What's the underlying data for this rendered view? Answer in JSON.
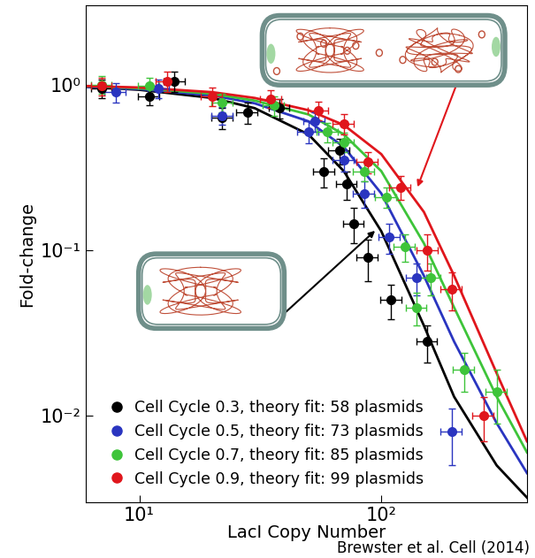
{
  "chart_data": {
    "type": "scatter",
    "x_label": "LacI Copy Number",
    "y_label": "Fold-change",
    "credit": "Brewster et al. Cell (2014)",
    "log": true,
    "legend": "lower left",
    "xlim": [
      6,
      400
    ],
    "ylim": [
      0.003,
      3
    ],
    "xticks": [
      {
        "value": 10,
        "label": "10¹"
      },
      {
        "value": 100,
        "label": "10²"
      }
    ],
    "yticks": [
      {
        "value": 0.01,
        "label": "10⁻²"
      },
      {
        "value": 0.1,
        "label": "10⁻¹"
      },
      {
        "value": 1,
        "label": "10⁰"
      }
    ],
    "series": [
      {
        "name": "Cell Cycle 0.3, theory fit: 58 plasmids",
        "type": "scatter",
        "marker": "o",
        "color": "#000000",
        "x": [
          7,
          11,
          14,
          22,
          28,
          38,
          58,
          67,
          72,
          77,
          88,
          110,
          155
        ],
        "values": [
          0.95,
          0.85,
          1.05,
          0.63,
          0.68,
          0.72,
          0.3,
          0.4,
          0.25,
          0.145,
          0.09,
          0.05,
          0.028
        ],
        "x_err": [
          0.7,
          1.1,
          1.4,
          2.2,
          2.8,
          3.8,
          5.8,
          6.7,
          7.2,
          7.7,
          8.8,
          11,
          15
        ],
        "y_err": [
          0.12,
          0.1,
          0.15,
          0.09,
          0.1,
          0.1,
          0.06,
          0.07,
          0.05,
          0.035,
          0.025,
          0.012,
          0.007
        ]
      },
      {
        "name": "Cell Cycle 0.5, theory fit: 73 plasmids",
        "type": "scatter",
        "marker": "o",
        "color": "#2a35c0",
        "x": [
          8,
          12,
          22,
          50,
          53,
          70,
          85,
          108,
          140,
          195
        ],
        "values": [
          0.9,
          0.95,
          0.65,
          0.52,
          0.6,
          0.35,
          0.22,
          0.12,
          0.068,
          0.008
        ],
        "x_err": [
          0.8,
          1.2,
          2.2,
          5,
          5.3,
          7,
          8.5,
          10.8,
          14,
          19.5
        ],
        "y_err": [
          0.12,
          0.12,
          0.08,
          0.08,
          0.08,
          0.05,
          0.04,
          0.025,
          0.015,
          0.003
        ]
      },
      {
        "name": "Cell Cycle 0.7, theory fit: 85 plasmids",
        "type": "scatter",
        "marker": "o",
        "color": "#3ec43a",
        "x": [
          7,
          11,
          22,
          36,
          60,
          70,
          85,
          105,
          125,
          140,
          160,
          220,
          300
        ],
        "values": [
          1.0,
          0.98,
          0.78,
          0.75,
          0.52,
          0.45,
          0.3,
          0.21,
          0.105,
          0.045,
          0.068,
          0.019,
          0.014
        ],
        "x_err": [
          0.7,
          1.1,
          2.2,
          3.6,
          6,
          7,
          8.5,
          10.5,
          12.5,
          14,
          16,
          22,
          30
        ],
        "y_err": [
          0.12,
          0.12,
          0.1,
          0.1,
          0.07,
          0.06,
          0.04,
          0.03,
          0.02,
          0.01,
          0.015,
          0.005,
          0.005
        ]
      },
      {
        "name": "Cell Cycle 0.9, theory fit: 99 plasmids",
        "type": "scatter",
        "marker": "o",
        "color": "#e0161c",
        "x": [
          7,
          13,
          20,
          35,
          55,
          70,
          88,
          120,
          155,
          195,
          265
        ],
        "values": [
          0.98,
          1.05,
          0.85,
          0.82,
          0.7,
          0.58,
          0.34,
          0.24,
          0.1,
          0.058,
          0.01
        ],
        "x_err": [
          0.7,
          1.3,
          2,
          3.5,
          5.5,
          7,
          8.8,
          12,
          15.5,
          19.5,
          26.5
        ],
        "y_err": [
          0.12,
          0.15,
          0.11,
          0.1,
          0.09,
          0.08,
          0.05,
          0.04,
          0.025,
          0.015,
          0.003
        ]
      },
      {
        "type": "line",
        "color": "#000000",
        "x": [
          6,
          10,
          20,
          30,
          50,
          70,
          100,
          150,
          200,
          300,
          400
        ],
        "values": [
          0.97,
          0.93,
          0.83,
          0.72,
          0.5,
          0.3,
          0.13,
          0.035,
          0.013,
          0.005,
          0.0032
        ]
      },
      {
        "type": "line",
        "color": "#2a35c0",
        "x": [
          6,
          10,
          20,
          30,
          50,
          70,
          100,
          150,
          200,
          300,
          400
        ],
        "values": [
          0.97,
          0.94,
          0.86,
          0.77,
          0.6,
          0.42,
          0.22,
          0.07,
          0.028,
          0.009,
          0.0045
        ]
      },
      {
        "type": "line",
        "color": "#3ec43a",
        "x": [
          6,
          10,
          20,
          30,
          50,
          70,
          100,
          150,
          200,
          300,
          400
        ],
        "values": [
          0.98,
          0.95,
          0.88,
          0.8,
          0.66,
          0.5,
          0.3,
          0.11,
          0.045,
          0.013,
          0.006
        ]
      },
      {
        "type": "line",
        "color": "#e0161c",
        "x": [
          6,
          10,
          20,
          30,
          50,
          70,
          100,
          150,
          200,
          300,
          400
        ],
        "values": [
          0.98,
          0.96,
          0.9,
          0.83,
          0.7,
          0.57,
          0.38,
          0.17,
          0.07,
          0.018,
          0.007
        ]
      }
    ]
  }
}
